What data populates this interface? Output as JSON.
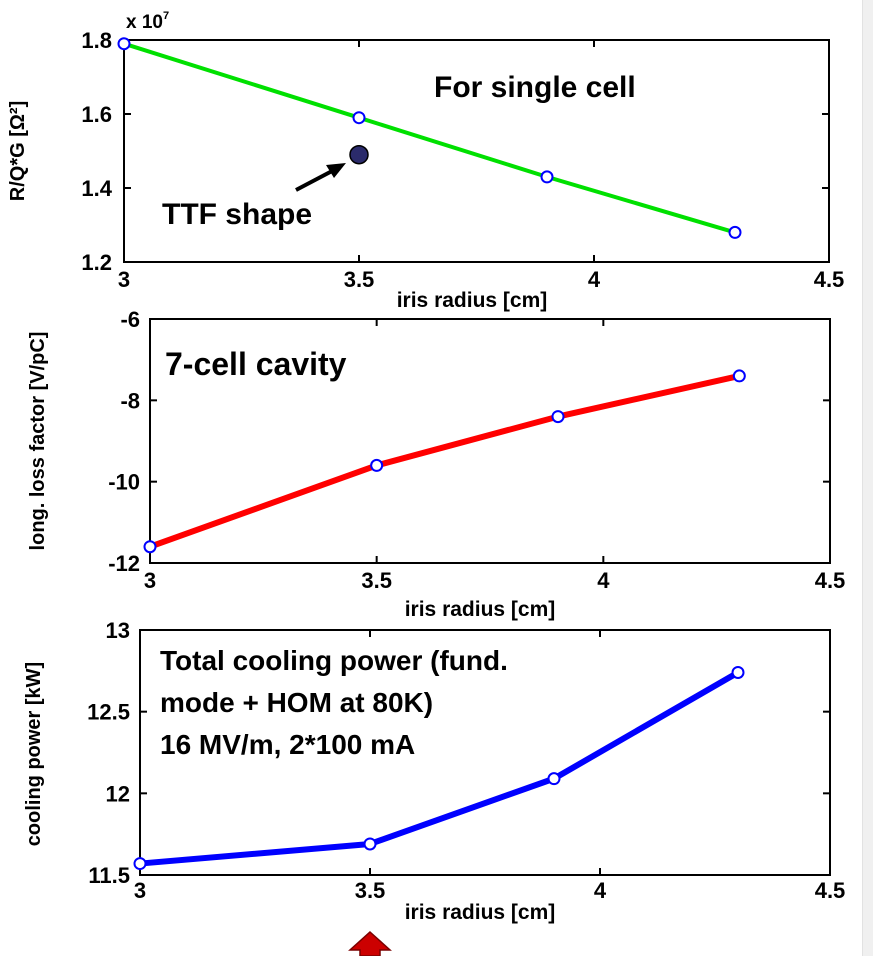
{
  "colors": {
    "background": "#ffffff",
    "axes": "#000000",
    "panel1_line": "#00e000",
    "panel2_line": "#ff0000",
    "panel3_line": "#0000ff",
    "markers": "#0000ff",
    "ttf_point": "#2b2b6b",
    "arrow_fill": "#cc0000"
  },
  "chart_data": [
    {
      "type": "line",
      "xlabel": "iris radius [cm]",
      "ylabel": "R/Q*G  [Ω²]",
      "exponent_label": "x 10",
      "exponent_sup": "7",
      "annotation": "For single cell",
      "point_label": "TTF shape",
      "xlim": [
        3,
        4.5
      ],
      "ylim": [
        1.2,
        1.8
      ],
      "xticks": [
        3,
        3.5,
        4,
        4.5
      ],
      "xtick_labels": [
        "3",
        "3.5",
        "4",
        "4.5"
      ],
      "yticks": [
        1.2,
        1.4,
        1.6,
        1.8
      ],
      "ytick_labels": [
        "1.2",
        "1.4",
        "1.6",
        "1.8"
      ],
      "series": [
        {
          "x": [
            3.0,
            3.5,
            3.9,
            4.3
          ],
          "y": [
            1.79,
            1.59,
            1.43,
            1.28
          ],
          "color": "#00e000"
        }
      ],
      "extra_point": {
        "x": 3.5,
        "y": 1.49
      }
    },
    {
      "type": "line",
      "xlabel": "iris radius [cm]",
      "ylabel": "long. loss factor  [V/pC]",
      "annotation": "7-cell cavity",
      "xlim": [
        3,
        4.5
      ],
      "ylim": [
        -12,
        -6
      ],
      "xticks": [
        3,
        3.5,
        4,
        4.5
      ],
      "xtick_labels": [
        "3",
        "3.5",
        "4",
        "4.5"
      ],
      "yticks": [
        -12,
        -10,
        -8,
        -6
      ],
      "ytick_labels": [
        "-12",
        "-10",
        "-8",
        "-6"
      ],
      "series": [
        {
          "x": [
            3.0,
            3.5,
            3.9,
            4.3
          ],
          "y": [
            -11.6,
            -9.6,
            -8.4,
            -7.4
          ],
          "color": "#ff0000"
        }
      ]
    },
    {
      "type": "line",
      "xlabel": "iris radius [cm]",
      "ylabel": "cooling power  [kW]",
      "annotation_lines": [
        "Total cooling power (fund.",
        "mode + HOM at 80K)",
        "16 MV/m, 2*100 mA"
      ],
      "xlim": [
        3,
        4.5
      ],
      "ylim": [
        11.5,
        13
      ],
      "xticks": [
        3,
        3.5,
        4,
        4.5
      ],
      "xtick_labels": [
        "3",
        "3.5",
        "4",
        "4.5"
      ],
      "yticks": [
        11.5,
        12,
        12.5,
        13
      ],
      "ytick_labels": [
        "11.5",
        "12",
        "12.5",
        "13"
      ],
      "series": [
        {
          "x": [
            3.0,
            3.5,
            3.9,
            4.3
          ],
          "y": [
            11.57,
            11.69,
            12.09,
            12.74
          ],
          "color": "#0000ff"
        }
      ],
      "marker_arrow_x": 3.5
    }
  ]
}
